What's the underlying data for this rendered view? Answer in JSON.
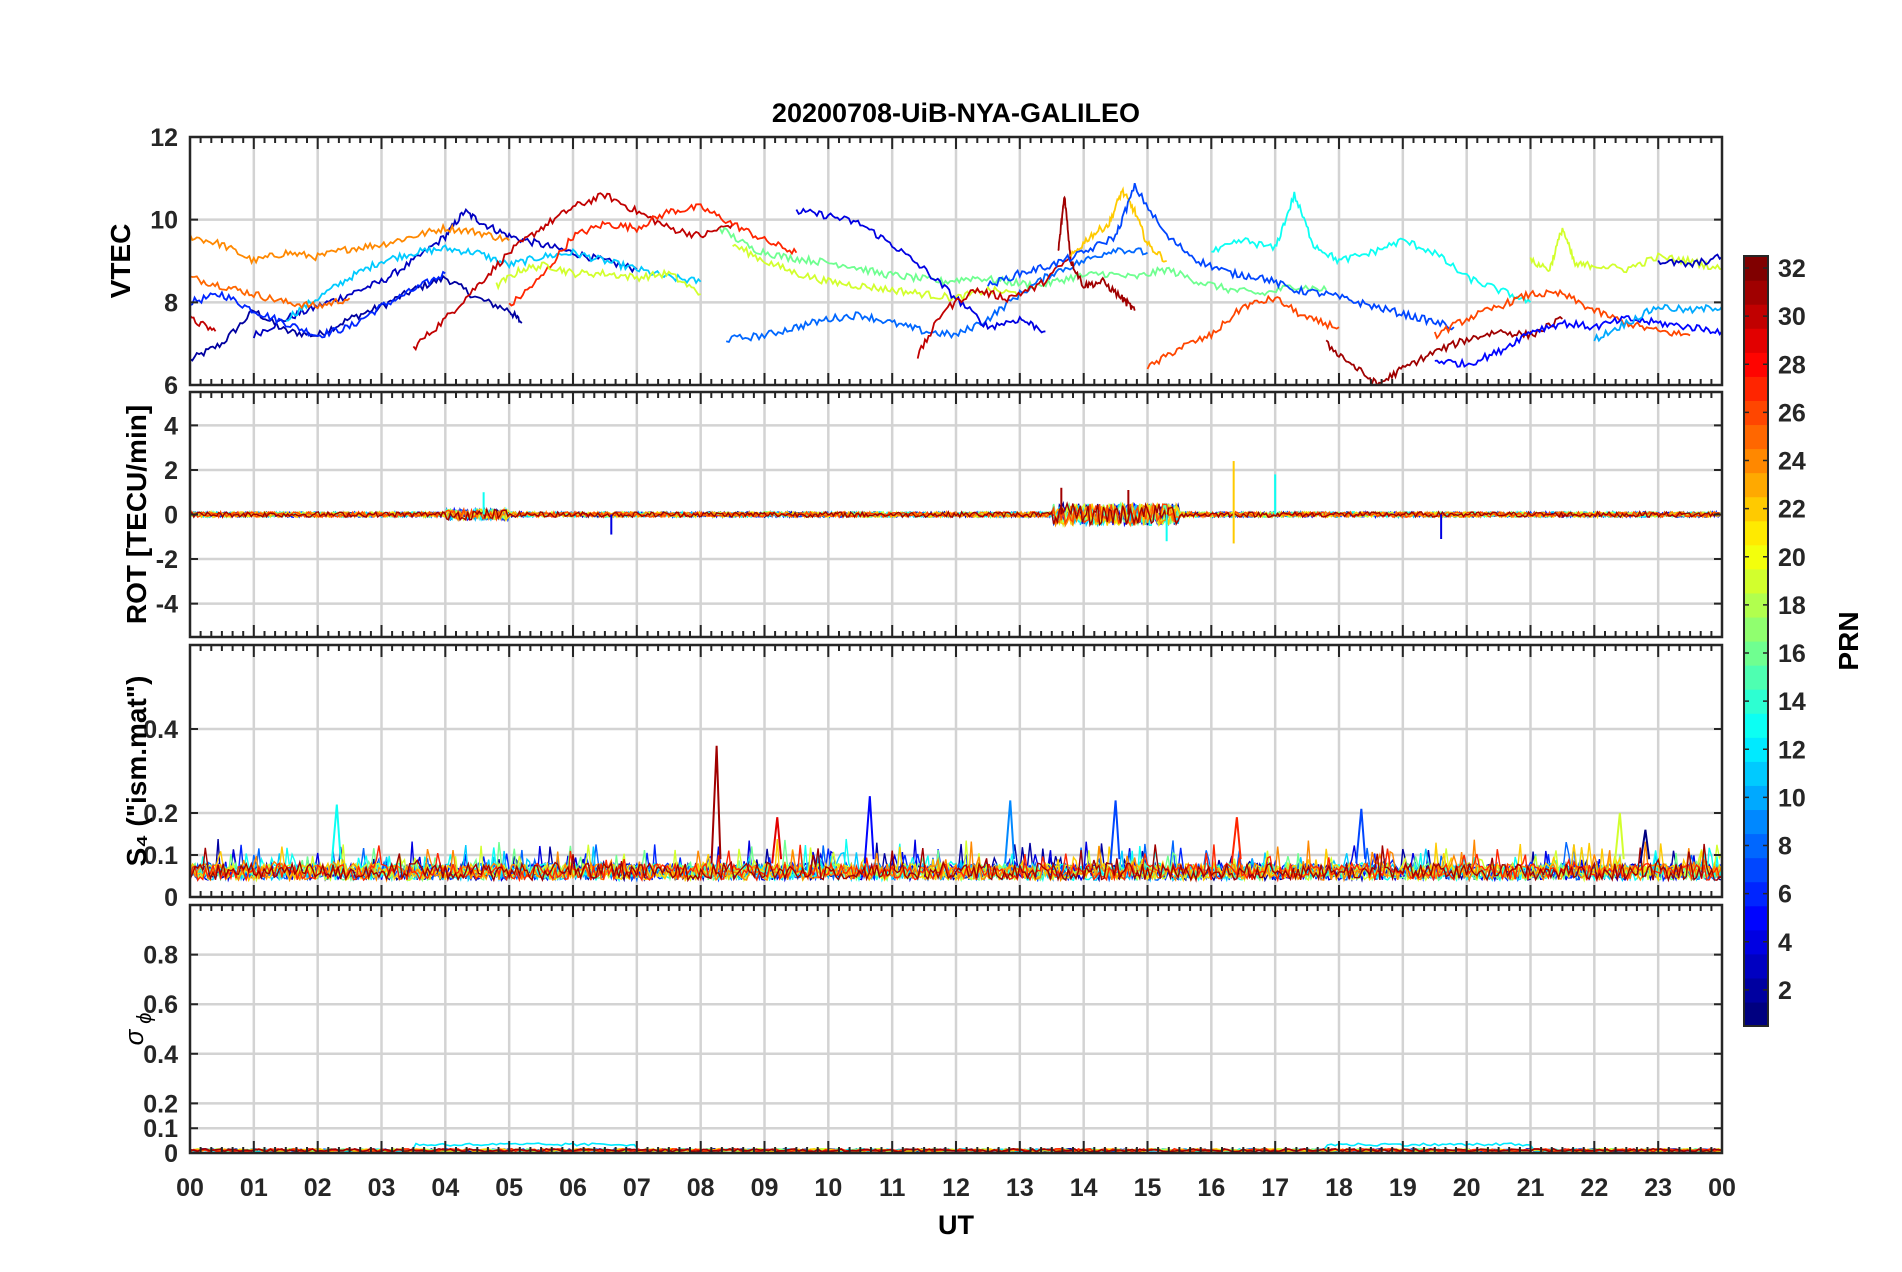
{
  "chart_data": {
    "type": "line",
    "title": "20200708-UiB-NYA-GALILEO",
    "xlabel": "UT",
    "x_tick_labels": [
      "00",
      "01",
      "02",
      "03",
      "04",
      "05",
      "06",
      "07",
      "08",
      "09",
      "10",
      "11",
      "12",
      "13",
      "14",
      "15",
      "16",
      "17",
      "18",
      "19",
      "20",
      "21",
      "22",
      "23",
      "00"
    ],
    "xlim": [
      0,
      24
    ],
    "grid": true,
    "colorbar": {
      "label": "PRN",
      "range": [
        1,
        32
      ],
      "ticks": [
        "2",
        "4",
        "6",
        "8",
        "10",
        "12",
        "14",
        "16",
        "18",
        "20",
        "22",
        "24",
        "26",
        "28",
        "30",
        "32"
      ],
      "colormap": "jet"
    },
    "panels": [
      {
        "id": "vtec",
        "ylabel": "VTEC",
        "ylim": [
          6,
          12
        ],
        "yticks": [
          "6",
          "8",
          "10",
          "12"
        ],
        "series": [
          {
            "prn": 2,
            "x": [
              0,
              0.5,
              1,
              1.5,
              2,
              2.5,
              3,
              3.5,
              4,
              4.5,
              5,
              5.2
            ],
            "y": [
              6.6,
              7.0,
              7.8,
              7.3,
              7.2,
              7.6,
              7.9,
              8.3,
              8.6,
              8.1,
              7.8,
              7.5
            ]
          },
          {
            "prn": 3,
            "x": [
              1,
              1.5,
              2,
              2.5,
              3,
              3.5,
              4,
              4.3,
              4.6,
              5,
              5.5,
              6,
              6.5,
              7
            ],
            "y": [
              7.2,
              7.6,
              7.9,
              8.2,
              8.5,
              9.0,
              9.6,
              10.2,
              9.9,
              9.6,
              9.4,
              9.2,
              9.0,
              8.8
            ]
          },
          {
            "prn": 6,
            "x": [
              0,
              0.5,
              1,
              1.5,
              2,
              2.5,
              3,
              3.5,
              4
            ],
            "y": [
              8.0,
              8.2,
              7.8,
              7.5,
              7.2,
              7.4,
              7.9,
              8.3,
              8.7
            ]
          },
          {
            "prn": 11,
            "x": [
              1.5,
              2,
              2.5,
              3,
              3.5,
              4,
              4.5,
              5,
              5.5,
              6,
              6.5,
              7,
              7.5,
              8
            ],
            "y": [
              7.6,
              8.1,
              8.6,
              9.0,
              9.2,
              9.3,
              9.2,
              8.9,
              9.1,
              9.2,
              9.0,
              8.8,
              8.6,
              8.5
            ]
          },
          {
            "prn": 24,
            "x": [
              0,
              0.5,
              1,
              1.5,
              2,
              2.5,
              3,
              3.5,
              4,
              4.5,
              5
            ],
            "y": [
              9.6,
              9.4,
              9.0,
              9.2,
              9.1,
              9.3,
              9.4,
              9.6,
              9.8,
              9.7,
              9.5
            ]
          },
          {
            "prn": 25,
            "x": [
              0,
              0.5,
              1,
              1.5,
              2,
              2.5
            ],
            "y": [
              8.6,
              8.4,
              8.2,
              8.0,
              7.9,
              8.1
            ]
          },
          {
            "prn": 30,
            "x": [
              0,
              0.4
            ],
            "y": [
              7.6,
              7.3
            ]
          },
          {
            "prn": 30,
            "x": [
              3.5,
              4,
              4.5,
              5,
              5.5,
              6,
              6.5,
              7,
              7.5,
              8,
              8.5
            ],
            "y": [
              6.9,
              7.6,
              8.4,
              9.2,
              9.8,
              10.3,
              10.6,
              10.2,
              9.8,
              9.6,
              9.9
            ]
          },
          {
            "prn": 27,
            "x": [
              5,
              5.5,
              6,
              6.5,
              7,
              7.5,
              8,
              8.5,
              9,
              9.5
            ],
            "y": [
              7.9,
              8.6,
              9.6,
              9.9,
              9.8,
              10.2,
              10.3,
              9.9,
              9.5,
              9.2
            ]
          },
          {
            "prn": 19,
            "x": [
              4.8,
              5.2,
              5.6,
              6,
              6.5,
              7,
              7.5,
              8
            ],
            "y": [
              8.4,
              8.8,
              8.9,
              8.7,
              8.7,
              8.6,
              8.7,
              8.2
            ]
          },
          {
            "prn": 16,
            "x": [
              8.3,
              8.8,
              9.3,
              9.8,
              10.3,
              10.8,
              11.3,
              11.8,
              12.3,
              12.8,
              13.3,
              13.8,
              14.3,
              14.8,
              15.3,
              15.8,
              16.3,
              16.8,
              17.3,
              17.8
            ],
            "y": [
              9.8,
              9.3,
              9.1,
              9.0,
              8.9,
              8.7,
              8.6,
              8.5,
              8.6,
              8.5,
              8.4,
              8.6,
              8.7,
              8.6,
              8.8,
              8.5,
              8.3,
              8.2,
              8.4,
              8.3
            ]
          },
          {
            "prn": 19,
            "x": [
              8.5,
              9,
              9.5,
              10,
              10.5,
              11,
              11.5,
              12,
              12.5,
              13
            ],
            "y": [
              9.4,
              9.0,
              8.7,
              8.5,
              8.4,
              8.3,
              8.2,
              8.1,
              8.3,
              8.2
            ]
          },
          {
            "prn": 8,
            "x": [
              8.4,
              9,
              9.5,
              10,
              10.5,
              11,
              11.5,
              12,
              12.5,
              13,
              13.5,
              14,
              14.5,
              15
            ],
            "y": [
              7.1,
              7.2,
              7.4,
              7.6,
              7.7,
              7.5,
              7.3,
              7.2,
              7.6,
              8.2,
              8.7,
              9.0,
              9.3,
              9.2
            ]
          },
          {
            "prn": 4,
            "x": [
              9.5,
              10,
              10.5,
              11,
              11.5,
              12,
              12.5,
              13,
              13.4
            ],
            "y": [
              10.2,
              10.1,
              9.9,
              9.4,
              8.8,
              8.1,
              7.4,
              7.6,
              7.3
            ]
          },
          {
            "prn": 30,
            "x": [
              11.4,
              11.8,
              12.3,
              12.8,
              13.3,
              13.8
            ],
            "y": [
              6.7,
              7.8,
              8.3,
              8.1,
              8.4,
              9.1
            ]
          },
          {
            "prn": 31,
            "x": [
              13.6,
              13.7,
              13.8,
              14,
              14.3,
              14.6,
              14.8
            ],
            "y": [
              9.2,
              10.6,
              9.0,
              8.4,
              8.5,
              8.1,
              7.8
            ]
          },
          {
            "prn": 22,
            "x": [
              13.8,
              14.1,
              14.4,
              14.6,
              14.8,
              15,
              15.3
            ],
            "y": [
              9.1,
              9.6,
              9.9,
              10.7,
              10.2,
              9.4,
              9.0
            ]
          },
          {
            "prn": 7,
            "x": [
              12.5,
              13,
              13.5,
              14,
              14.5,
              14.8,
              15.3,
              15.8,
              16.3,
              16.8,
              17.3,
              17.8,
              18.3,
              18.8,
              19.3,
              19.8
            ],
            "y": [
              8.4,
              8.7,
              8.9,
              9.2,
              9.6,
              10.8,
              9.6,
              9.0,
              8.7,
              8.6,
              8.3,
              8.2,
              8.0,
              7.8,
              7.6,
              7.4
            ]
          },
          {
            "prn": 26,
            "x": [
              15,
              15.5,
              16,
              16.5,
              17,
              17.5,
              18
            ],
            "y": [
              6.4,
              6.9,
              7.2,
              7.9,
              8.1,
              7.6,
              7.4
            ]
          },
          {
            "prn": 13,
            "x": [
              16,
              16.5,
              17,
              17.3,
              17.6,
              18,
              18.5,
              19,
              19.5,
              20,
              20.5,
              21
            ],
            "y": [
              9.2,
              9.5,
              9.3,
              10.6,
              9.4,
              9.0,
              9.2,
              9.5,
              9.2,
              8.6,
              8.3,
              8.0
            ]
          },
          {
            "prn": 31,
            "x": [
              17.8,
              18.2,
              18.6,
              19,
              19.5,
              20,
              20.5,
              21,
              21.5
            ],
            "y": [
              7.0,
              6.5,
              6.0,
              6.4,
              6.8,
              7.1,
              7.3,
              7.2,
              7.6
            ]
          },
          {
            "prn": 26,
            "x": [
              19.5,
              20,
              20.5,
              21,
              21.5,
              22,
              22.5,
              23,
              23.5
            ],
            "y": [
              7.2,
              7.6,
              7.9,
              8.2,
              8.2,
              7.8,
              7.5,
              7.3,
              7.2
            ]
          },
          {
            "prn": 5,
            "x": [
              19.5,
              20,
              20.5,
              21,
              21.5,
              22,
              22.5,
              23,
              23.5,
              24
            ],
            "y": [
              6.6,
              6.5,
              6.8,
              7.3,
              7.5,
              7.4,
              7.6,
              7.5,
              7.4,
              7.3
            ]
          },
          {
            "prn": 19,
            "x": [
              21,
              21.3,
              21.5,
              21.7,
              22,
              22.5,
              23,
              23.5,
              24
            ],
            "y": [
              9.0,
              8.8,
              9.8,
              8.9,
              8.9,
              8.8,
              9.1,
              9.0,
              8.8
            ]
          },
          {
            "prn": 10,
            "x": [
              22,
              22.5,
              23,
              23.5,
              24
            ],
            "y": [
              7.1,
              7.5,
              7.9,
              7.8,
              7.9
            ]
          },
          {
            "prn": 3,
            "x": [
              23,
              23.5,
              24
            ],
            "y": [
              9.0,
              8.9,
              9.1
            ]
          }
        ]
      },
      {
        "id": "rot",
        "ylabel": "ROT [TECU/min]",
        "ylim": [
          -5.5,
          5.5
        ],
        "yticks": [
          "-4",
          "-2",
          "0",
          "2",
          "4"
        ],
        "spikes": [
          {
            "prn": 22,
            "x": 16.35,
            "y": 2.4
          },
          {
            "prn": 22,
            "x": 16.35,
            "y": -1.3
          },
          {
            "prn": 13,
            "x": 17.0,
            "y": 1.8
          },
          {
            "prn": 31,
            "x": 13.65,
            "y": 1.2
          },
          {
            "prn": 31,
            "x": 14.7,
            "y": 1.1
          },
          {
            "prn": 13,
            "x": 4.6,
            "y": 1.0
          },
          {
            "prn": 4,
            "x": 6.6,
            "y": -0.9
          },
          {
            "prn": 4,
            "x": 19.6,
            "y": -1.1
          },
          {
            "prn": 13,
            "x": 15.3,
            "y": -1.2
          }
        ]
      },
      {
        "id": "s4",
        "ylabel": "S₄ (\"ism.mat\")",
        "ylim": [
          0,
          0.6
        ],
        "yticks": [
          "0",
          "0.1",
          "0.2",
          "0.4"
        ],
        "spikes": [
          {
            "prn": 31,
            "x": 8.25,
            "y": 0.36
          },
          {
            "prn": 5,
            "x": 10.65,
            "y": 0.24
          },
          {
            "prn": 13,
            "x": 2.3,
            "y": 0.22
          },
          {
            "prn": 9,
            "x": 12.85,
            "y": 0.23
          },
          {
            "prn": 7,
            "x": 14.5,
            "y": 0.23
          },
          {
            "prn": 7,
            "x": 18.35,
            "y": 0.21
          },
          {
            "prn": 27,
            "x": 16.4,
            "y": 0.19
          },
          {
            "prn": 29,
            "x": 9.2,
            "y": 0.19
          },
          {
            "prn": 19,
            "x": 22.4,
            "y": 0.2
          },
          {
            "prn": 1,
            "x": 22.8,
            "y": 0.16
          }
        ]
      },
      {
        "id": "sigphi",
        "ylabel": "σ ϕ",
        "ylim": [
          0,
          1
        ],
        "yticks": [
          "0",
          "0.1",
          "0.2",
          "0.4",
          "0.6",
          "0.8"
        ]
      }
    ]
  }
}
